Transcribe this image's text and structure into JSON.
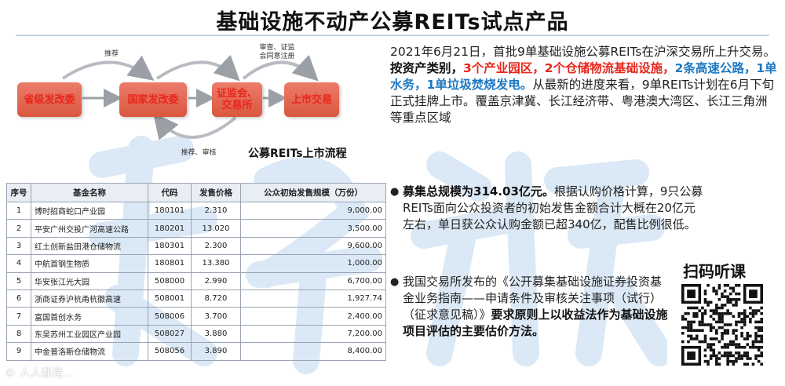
{
  "title": "基础设施不动产公募REITs试点产品",
  "flow": {
    "steps": [
      "省级发改委",
      "国家发改委",
      "证监会、\n交易所",
      "上市交易"
    ],
    "note_recommend": "推荐",
    "note_review": "审查、证监\n会同意注册",
    "note_bottom": "推荐、审核",
    "caption": "公募REITs上市流程"
  },
  "table": {
    "headers": [
      "序号",
      "基金名称",
      "代码",
      "发售价格",
      "公众初始发售规模（万份）"
    ],
    "rows": [
      [
        "1",
        "博时招商蛇口产业园",
        "180101",
        "2.310",
        "9,000.00"
      ],
      [
        "2",
        "平安广州交投广河高速公路",
        "180201",
        "13.020",
        "3,500.00"
      ],
      [
        "3",
        "红土创新盐田港仓储物流",
        "180301",
        "2.300",
        "9,600.00"
      ],
      [
        "4",
        "中航首钢生物质",
        "180801",
        "13.380",
        "1,000.00"
      ],
      [
        "5",
        "华安张江光大园",
        "508000",
        "2.990",
        "6,700.00"
      ],
      [
        "6",
        "浙商证券沪杭甬杭徽高速",
        "508001",
        "8.720",
        "1,927.74"
      ],
      [
        "7",
        "富国首创水务",
        "508006",
        "3.700",
        "2,400.00"
      ],
      [
        "8",
        "东吴苏州工业园区产业园",
        "508027",
        "3.880",
        "7,200.00"
      ],
      [
        "9",
        "中金普洛斯仓储物流",
        "508056",
        "3.890",
        "8,400.00"
      ]
    ]
  },
  "intro": {
    "line1": "2021年6月21日，首批9单基础设施公募REITs在沪深交易所上升交易。",
    "cat_label": "按资产类别，",
    "cat_red": "3个产业园区，2个仓储物流基础设施，",
    "cat_blue": "2条高速公路，1单水务，1单垃圾焚烧发电。",
    "cat_rest": "从最新的进度来看，9单REITs计划在6月下旬正式挂牌上市。覆盖京津冀、长江经济带、粤港澳大湾区、长江三角洲等重点区域"
  },
  "bullet1": {
    "bold": "募集总规模为314.03亿元。",
    "text": "根据认购价格计算，9只公募REITs面向公众投资者的初始发售金额合计大概在20亿元左右，单日获公众认购金额已超340亿，配售比例很低。"
  },
  "bullet2": {
    "text": "我国交易所发布的《公开募集基础设施证券投资基金业务指南——申请条件及审核关注事项（试行）（征求意见稿）》",
    "bold": "要求原则上以收益法作为基础设施项目评估的主要估价方法。"
  },
  "qr": {
    "label": "扫码听课"
  },
  "corner_watermark": "© 人人都是...",
  "colors": {
    "flow_red": "#e0644d",
    "accent_red": "#e8261c",
    "accent_blue": "#1d78c3"
  }
}
